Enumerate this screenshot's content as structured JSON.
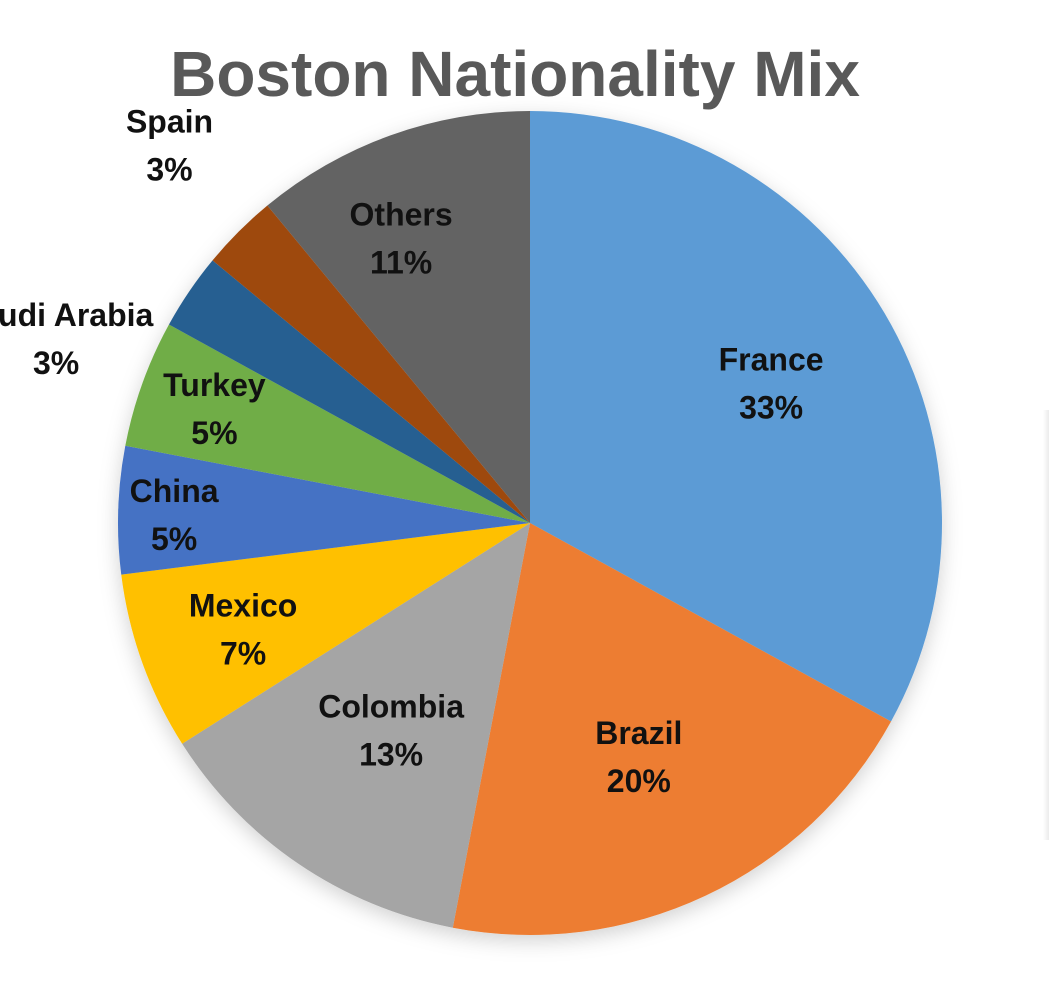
{
  "chart_data": {
    "type": "pie",
    "title": "Boston Nationality Mix",
    "categories": [
      "France",
      "Brazil",
      "Colombia",
      "Mexico",
      "China",
      "Turkey",
      "Saudi Arabia",
      "Spain",
      "Others"
    ],
    "values": [
      33,
      20,
      13,
      7,
      5,
      5,
      3,
      3,
      11
    ],
    "labels": [
      "33%",
      "20%",
      "13%",
      "7%",
      "5%",
      "5%",
      "3%",
      "3%",
      "11%"
    ],
    "colors": [
      "#5B9BD5",
      "#ED7D31",
      "#A5A5A5",
      "#FFC000",
      "#4472C4",
      "#70AD47",
      "#255E91",
      "#9E480E",
      "#636363"
    ],
    "start_angle": "12 o'clock",
    "direction": "clockwise",
    "legend": "none",
    "data_labels": "category name and percentage inside each slice"
  }
}
